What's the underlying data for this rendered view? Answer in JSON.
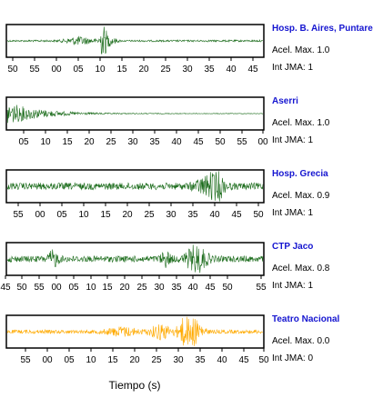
{
  "chart_data": {
    "type": "line",
    "x_axis_title": "Tiempo (s)",
    "panels": [
      {
        "station": "Hosp. B. Aires, Puntare",
        "acel_label": "Acel. Max. 1.0",
        "jma_label": "Int JMA: 1",
        "color": "#1a6b1a",
        "ticks": [
          "50",
          "55",
          "00",
          "05",
          "10",
          "15",
          "20",
          "25",
          "30",
          "35",
          "40",
          "45"
        ],
        "noise": 0.06,
        "bursts": [
          {
            "t": 0.28,
            "w": 0.05,
            "a": 0.25
          },
          {
            "t": 0.375,
            "w": 0.012,
            "a": 0.9
          },
          {
            "t": 0.39,
            "w": 0.03,
            "a": 0.35
          }
        ]
      },
      {
        "station": "Aserri",
        "acel_label": "Acel. Max. 1.0",
        "jma_label": "Int JMA: 1",
        "color": "#1a6b1a",
        "ticks": [
          "05",
          "10",
          "15",
          "20",
          "25",
          "30",
          "35",
          "40",
          "45",
          "50",
          "55",
          "00"
        ],
        "noise": 0.02,
        "decay": {
          "start": 0.0,
          "tau": 0.12,
          "a": 0.75
        }
      },
      {
        "station": "Hosp. Grecia",
        "acel_label": "Acel. Max. 0.9",
        "jma_label": "Int JMA: 1",
        "color": "#1a6b1a",
        "ticks": [
          "55",
          "00",
          "05",
          "10",
          "15",
          "20",
          "25",
          "30",
          "35",
          "40",
          "45",
          "50"
        ],
        "noise": 0.22,
        "bursts": [
          {
            "t": 0.79,
            "w": 0.05,
            "a": 0.55
          },
          {
            "t": 0.82,
            "w": 0.02,
            "a": 0.9
          }
        ]
      },
      {
        "station": "CTP Jaco",
        "acel_label": "Acel. Max. 0.8",
        "jma_label": "Int JMA: 1",
        "color": "#1a6b1a",
        "ticks": [
          "45",
          "50",
          "55",
          "00",
          "05",
          "10",
          "15",
          "20",
          "25",
          "30",
          "35",
          "40",
          "45",
          "50",
          "55"
        ],
        "noise": 0.2,
        "bursts": [
          {
            "t": 0.18,
            "w": 0.02,
            "a": 0.45
          },
          {
            "t": 0.62,
            "w": 0.02,
            "a": 0.4
          },
          {
            "t": 0.74,
            "w": 0.04,
            "a": 0.8
          }
        ]
      },
      {
        "station": "Teatro Nacional",
        "acel_label": "Acel. Max. 0.0",
        "jma_label": "Int JMA: 0",
        "color": "#ffaa00",
        "ticks": [
          "55",
          "00",
          "05",
          "10",
          "15",
          "20",
          "25",
          "30",
          "35",
          "40",
          "45",
          "50"
        ],
        "noise": 0.12,
        "bursts": [
          {
            "t": 0.45,
            "w": 0.06,
            "a": 0.25
          },
          {
            "t": 0.6,
            "w": 0.04,
            "a": 0.45
          },
          {
            "t": 0.7,
            "w": 0.03,
            "a": 1.0
          },
          {
            "t": 0.74,
            "w": 0.03,
            "a": 0.55
          }
        ]
      }
    ]
  }
}
